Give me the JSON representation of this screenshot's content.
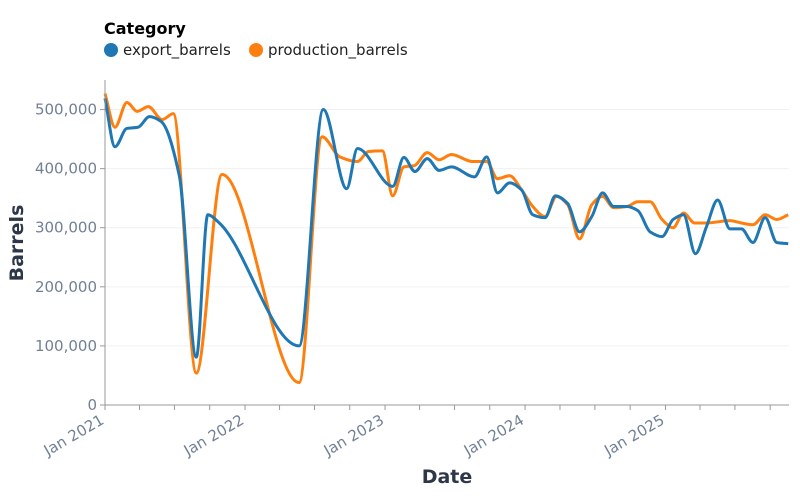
{
  "chart_data": {
    "type": "line",
    "xlabel": "Date",
    "ylabel": "Barrels",
    "ylim": [
      0,
      550000
    ],
    "xlim": [
      "2021-01-01",
      "2025-11-19"
    ],
    "y_ticks": [
      "0",
      "100,000",
      "200,000",
      "300,000",
      "400,000",
      "500,000"
    ],
    "y_tick_values": [
      0,
      100000,
      200000,
      300000,
      400000,
      500000
    ],
    "x_ticks": [
      "Jan 2021",
      "Jan 2022",
      "Jan 2023",
      "Jan 2024",
      "Jan 2025"
    ],
    "x_tick_dates": [
      "2021-01-01",
      "2022-01-01",
      "2023-01-01",
      "2024-01-01",
      "2025-01-01"
    ],
    "grid": true,
    "legend": {
      "title": "Category",
      "placement": "top-left"
    },
    "series": [
      {
        "name": "export_barrels",
        "color": "#1f77b4",
        "x": [
          "2021-01-01",
          "2021-01-27",
          "2021-02-27",
          "2021-03-28",
          "2021-04-27",
          "2021-05-27",
          "2021-07-14",
          "2021-08-27",
          "2021-09-26",
          "2021-10-26",
          "2022-05-22",
          "2022-07-24",
          "2022-09-23",
          "2022-10-21",
          "2023-01-21",
          "2023-02-19",
          "2023-03-20",
          "2023-04-21",
          "2023-05-22",
          "2023-06-23",
          "2023-08-22",
          "2023-09-23",
          "2023-10-21",
          "2023-11-22",
          "2023-12-23",
          "2024-01-21",
          "2024-02-22",
          "2024-03-20",
          "2024-04-21",
          "2024-05-22",
          "2024-06-23",
          "2024-07-21",
          "2024-08-19",
          "2024-09-23",
          "2024-10-21",
          "2024-11-22",
          "2024-12-23",
          "2025-01-21",
          "2025-02-17",
          "2025-03-20",
          "2025-04-18",
          "2025-05-17",
          "2025-06-18",
          "2025-07-18",
          "2025-08-17",
          "2025-09-18",
          "2025-10-18",
          "2025-11-17"
        ],
        "y": [
          519000,
          437000,
          468000,
          470000,
          488000,
          480000,
          387000,
          81000,
          322000,
          308000,
          100000,
          500000,
          366000,
          434000,
          370000,
          419000,
          395000,
          417000,
          397000,
          403000,
          386000,
          420000,
          359000,
          376000,
          364000,
          322000,
          317000,
          354000,
          341000,
          293000,
          319000,
          359000,
          336000,
          336000,
          329000,
          293000,
          285000,
          314000,
          322000,
          256000,
          302000,
          347000,
          298000,
          298000,
          275000,
          317000,
          275000,
          273000
        ]
      },
      {
        "name": "production_barrels",
        "color": "#ff7f0e",
        "x": [
          "2021-01-01",
          "2021-01-27",
          "2021-02-27",
          "2021-03-26",
          "2021-04-24",
          "2021-05-30",
          "2021-06-28",
          "2021-08-27",
          "2021-11-02",
          "2022-05-22",
          "2022-07-21",
          "2022-09-05",
          "2022-10-21",
          "2022-11-19",
          "2022-12-25",
          "2023-01-21",
          "2023-02-19",
          "2023-03-18",
          "2023-04-21",
          "2023-05-22",
          "2023-06-23",
          "2023-08-17",
          "2023-09-23",
          "2023-10-21",
          "2023-11-22",
          "2023-12-23",
          "2024-01-21",
          "2024-02-22",
          "2024-03-23",
          "2024-04-21",
          "2024-05-22",
          "2024-06-23",
          "2024-07-21",
          "2024-08-19",
          "2024-09-23",
          "2024-10-21",
          "2024-11-22",
          "2024-12-23",
          "2025-01-21",
          "2025-02-17",
          "2025-03-18",
          "2025-04-18",
          "2025-06-18",
          "2025-07-18",
          "2025-08-17",
          "2025-09-18",
          "2025-10-18",
          "2025-11-17"
        ],
        "y": [
          527000,
          470000,
          512000,
          497000,
          505000,
          483000,
          493000,
          54000,
          390000,
          38000,
          454000,
          420000,
          412000,
          429000,
          430000,
          354000,
          403000,
          405000,
          427000,
          415000,
          424000,
          412000,
          412000,
          383000,
          388000,
          364000,
          336000,
          319000,
          353000,
          339000,
          281000,
          339000,
          353000,
          334000,
          336000,
          344000,
          344000,
          314000,
          300000,
          325000,
          308000,
          308000,
          312000,
          308000,
          305000,
          322000,
          314000,
          322000
        ]
      }
    ]
  }
}
